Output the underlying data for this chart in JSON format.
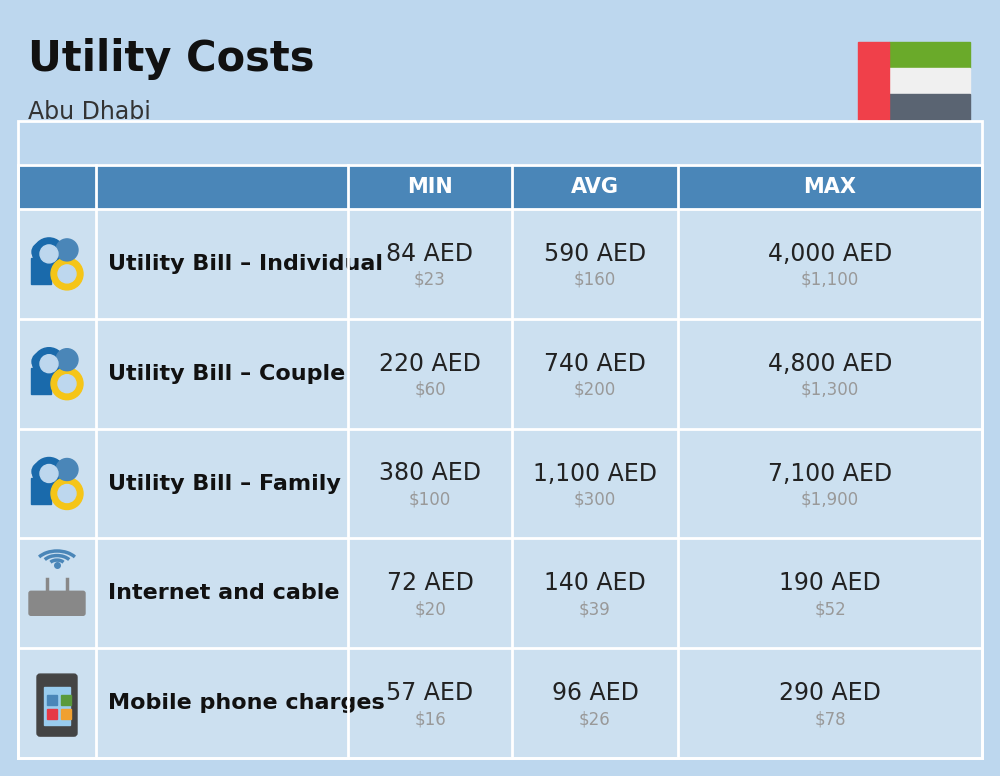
{
  "title": "Utility Costs",
  "subtitle": "Abu Dhabi",
  "bg_color": "#bdd7ee",
  "header_bg": "#4a86b8",
  "header_text_color": "#ffffff",
  "cell_bg": "#cce0f0",
  "border_color": "#a0c4e0",
  "col_headers": [
    "MIN",
    "AVG",
    "MAX"
  ],
  "rows": [
    {
      "label": "Utility Bill – Individual",
      "min_aed": "84 AED",
      "min_usd": "$23",
      "avg_aed": "590 AED",
      "avg_usd": "$160",
      "max_aed": "4,000 AED",
      "max_usd": "$1,100",
      "icon": "utility"
    },
    {
      "label": "Utility Bill – Couple",
      "min_aed": "220 AED",
      "min_usd": "$60",
      "avg_aed": "740 AED",
      "avg_usd": "$200",
      "max_aed": "4,800 AED",
      "max_usd": "$1,300",
      "icon": "utility"
    },
    {
      "label": "Utility Bill – Family",
      "min_aed": "380 AED",
      "min_usd": "$100",
      "avg_aed": "1,100 AED",
      "avg_usd": "$300",
      "max_aed": "7,100 AED",
      "max_usd": "$1,900",
      "icon": "utility"
    },
    {
      "label": "Internet and cable",
      "min_aed": "72 AED",
      "min_usd": "$20",
      "avg_aed": "140 AED",
      "avg_usd": "$39",
      "max_aed": "190 AED",
      "max_usd": "$52",
      "icon": "internet"
    },
    {
      "label": "Mobile phone charges",
      "min_aed": "57 AED",
      "min_usd": "$16",
      "avg_aed": "96 AED",
      "avg_usd": "$26",
      "max_aed": "290 AED",
      "max_usd": "$78",
      "icon": "mobile"
    }
  ],
  "flag": {
    "green": "#6aaa2a",
    "white": "#f0f0f0",
    "gray": "#5a6472",
    "red": "#f0404a"
  },
  "aed_fontsize": 17,
  "usd_fontsize": 12,
  "label_fontsize": 16,
  "header_fontsize": 15,
  "title_fontsize": 30,
  "subtitle_fontsize": 17
}
